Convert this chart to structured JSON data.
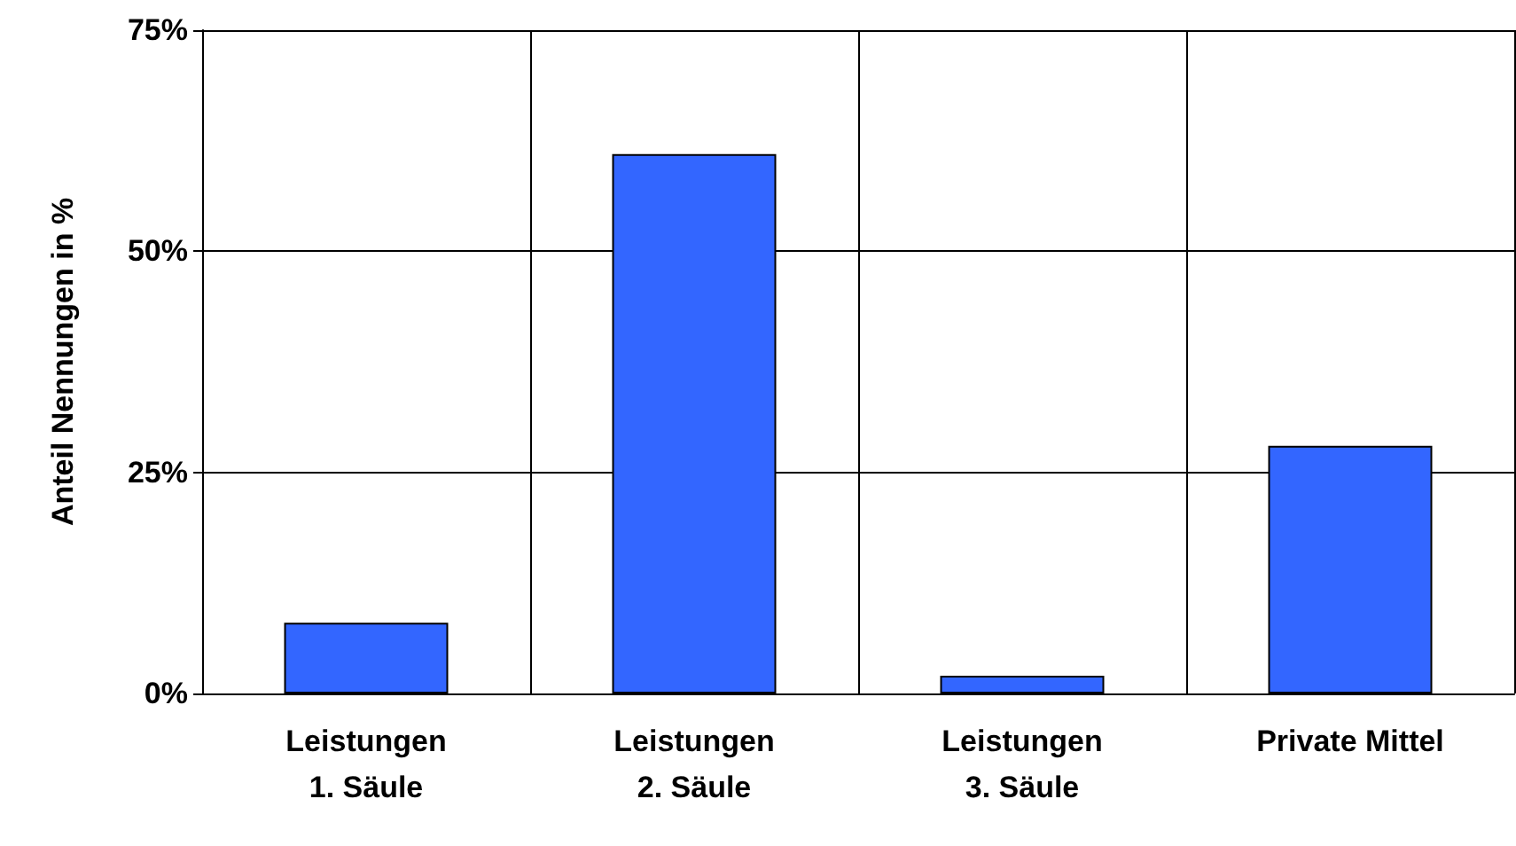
{
  "chart_data": {
    "type": "bar",
    "ylabel": "Anteil Nennungen in %",
    "categories": [
      "Leistungen\n1. Säule",
      "Leistungen\n2. Säule",
      "Leistungen\n3. Säule",
      "Private Mittel"
    ],
    "values": [
      8,
      61,
      2,
      28
    ],
    "color": "#3366ff",
    "ylim": [
      0,
      75
    ],
    "yticks": [
      {
        "value": 0,
        "label": "0%"
      },
      {
        "value": 25,
        "label": "25%"
      },
      {
        "value": 50,
        "label": "50%"
      },
      {
        "value": 75,
        "label": "75%"
      }
    ],
    "grid": true
  }
}
